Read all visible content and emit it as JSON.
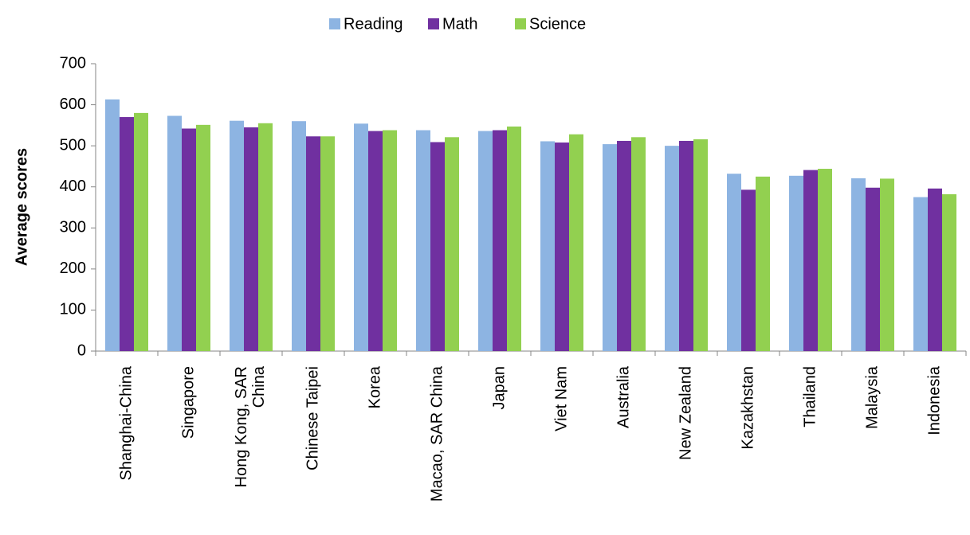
{
  "chart_data": {
    "type": "bar",
    "ylabel": "Average scores",
    "categories": [
      "Shanghai-China",
      "Singapore",
      "Hong Kong, SAR China",
      "Chinese Taipei",
      "Korea",
      "Macao, SAR China",
      "Japan",
      "Viet Nam",
      "Australia",
      "New Zealand",
      "Kazakhstan",
      "Thailand",
      "Malaysia",
      "Indonesia"
    ],
    "series": [
      {
        "name": "Reading",
        "color": "#8db4e2",
        "values": [
          613,
          573,
          561,
          560,
          554,
          538,
          536,
          511,
          504,
          500,
          432,
          427,
          421,
          375
        ]
      },
      {
        "name": "Math",
        "color": "#7030a0",
        "values": [
          570,
          542,
          545,
          523,
          536,
          509,
          538,
          508,
          512,
          512,
          393,
          441,
          398,
          396
        ]
      },
      {
        "name": "Science",
        "color": "#92d050",
        "values": [
          580,
          551,
          555,
          523,
          538,
          521,
          547,
          528,
          521,
          516,
          425,
          444,
          420,
          382
        ]
      }
    ],
    "ylim": [
      0,
      700
    ],
    "yticks": [
      0,
      100,
      200,
      300,
      400,
      500,
      600,
      700
    ],
    "legend": "top",
    "grid": false
  }
}
